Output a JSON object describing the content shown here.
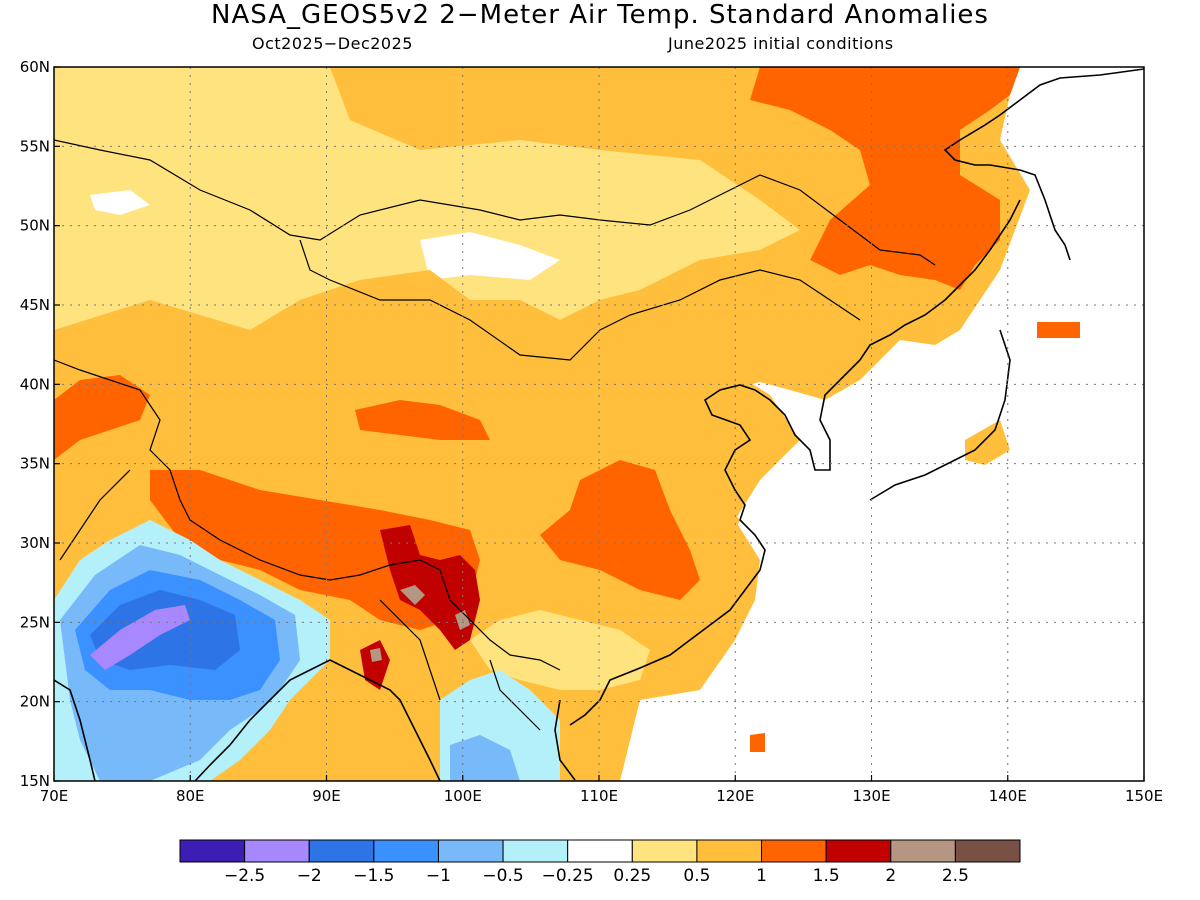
{
  "title": "NASA_GEOS5v2 2−Meter Air Temp. Standard Anomalies",
  "subtitle_left": "Oct2025−Dec2025",
  "subtitle_right": "June2025 initial conditions",
  "map": {
    "lon_labels": [
      "70E",
      "80E",
      "90E",
      "100E",
      "110E",
      "120E",
      "130E",
      "140E",
      "150E"
    ],
    "lat_labels": [
      "60N",
      "55N",
      "50N",
      "45N",
      "40N",
      "35N",
      "30N",
      "25N",
      "20N",
      "15N"
    ],
    "lon_range": [
      70,
      150
    ],
    "lat_range": [
      15,
      60
    ],
    "gridlines": "dotted",
    "regions": [
      {
        "name": "northern-plains",
        "value": 0.5,
        "color": "#ffe37f"
      },
      {
        "name": "siberia-northeast",
        "value": 1.5,
        "color": "#ff6400"
      },
      {
        "name": "tibet-south",
        "value": 1.5,
        "color": "#ff6400"
      },
      {
        "name": "yunnan-myanmar",
        "value": 2,
        "color": "#c10000"
      },
      {
        "name": "central-china",
        "value": 1.5,
        "color": "#ff6400"
      },
      {
        "name": "india-central",
        "value": -1.5,
        "color": "#3a91ff"
      },
      {
        "name": "india-core",
        "value": -2,
        "color": "#a888ff"
      },
      {
        "name": "indochina",
        "value": -0.5,
        "color": "#b4f0fa"
      }
    ]
  },
  "colorbar": {
    "colors": [
      "#3c1eb4",
      "#a888ff",
      "#2d74e6",
      "#3a91ff",
      "#78b9fa",
      "#b4f0fa",
      "#ffffff",
      "#ffe37f",
      "#ffbf3c",
      "#ff6400",
      "#c10000",
      "#b49682",
      "#785046"
    ],
    "tick_labels": [
      "−2.5",
      "−2",
      "−1.5",
      "−1",
      "−0.5",
      "−0.25",
      "0.25",
      "0.5",
      "1",
      "1.5",
      "2",
      "2.5"
    ]
  }
}
